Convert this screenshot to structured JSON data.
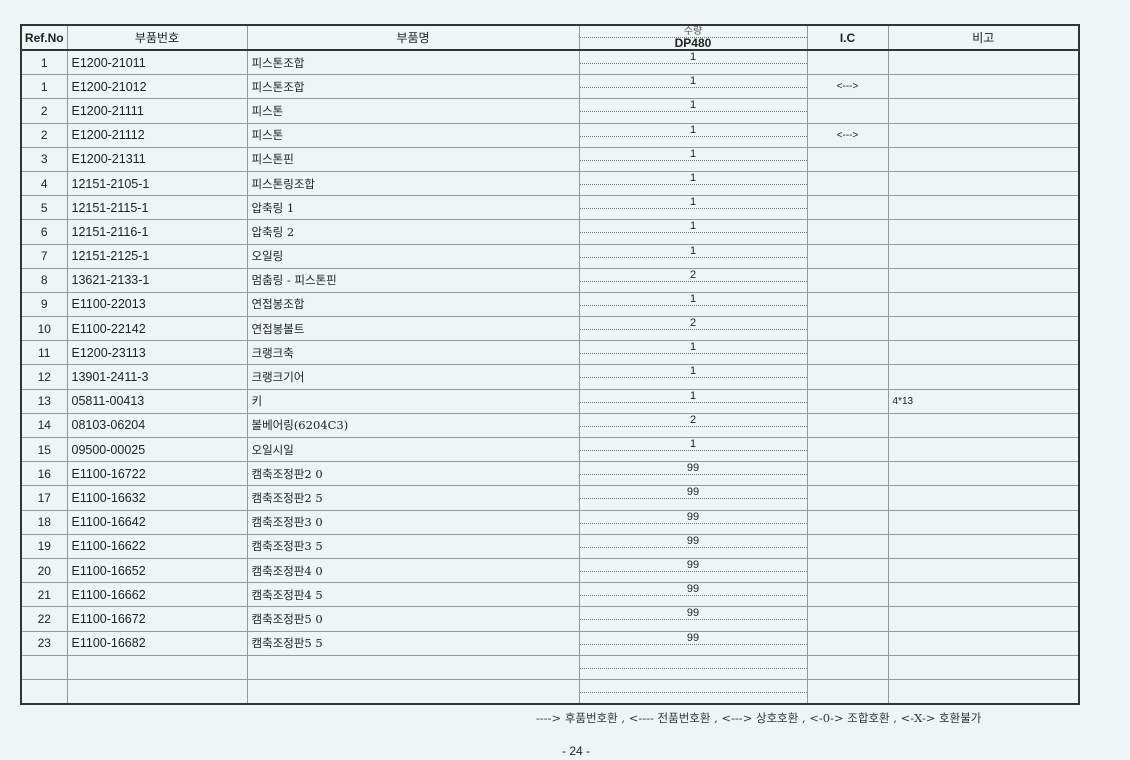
{
  "headers": {
    "ref": "Ref.No",
    "part_no": "부품번호",
    "part_name": "부품명",
    "qty_top": "수량",
    "qty_model": "DP480",
    "ic": "I.C",
    "remarks": "비고"
  },
  "rows": [
    {
      "ref": "1",
      "part_no": "E1200-21011",
      "name": "피스톤조합",
      "qty": "1",
      "ic": "",
      "remarks": ""
    },
    {
      "ref": "1",
      "part_no": "E1200-21012",
      "name": "피스톤조합",
      "qty": "1",
      "ic": "<--->",
      "remarks": ""
    },
    {
      "ref": "2",
      "part_no": "E1200-21111",
      "name": "피스톤",
      "qty": "1",
      "ic": "",
      "remarks": ""
    },
    {
      "ref": "2",
      "part_no": "E1200-21112",
      "name": "피스톤",
      "qty": "1",
      "ic": "<--->",
      "remarks": ""
    },
    {
      "ref": "3",
      "part_no": "E1200-21311",
      "name": "피스톤핀",
      "qty": "1",
      "ic": "",
      "remarks": ""
    },
    {
      "ref": "4",
      "part_no": "12151-2105-1",
      "name": "피스톤링조합",
      "qty": "1",
      "ic": "",
      "remarks": ""
    },
    {
      "ref": "5",
      "part_no": "12151-2115-1",
      "name": "압축링 1",
      "qty": "1",
      "ic": "",
      "remarks": ""
    },
    {
      "ref": "6",
      "part_no": "12151-2116-1",
      "name": "압축링 2",
      "qty": "1",
      "ic": "",
      "remarks": ""
    },
    {
      "ref": "7",
      "part_no": "12151-2125-1",
      "name": "오일링",
      "qty": "1",
      "ic": "",
      "remarks": ""
    },
    {
      "ref": "8",
      "part_no": "13621-2133-1",
      "name": "멈춤링 - 피스톤핀",
      "qty": "2",
      "ic": "",
      "remarks": ""
    },
    {
      "ref": "9",
      "part_no": "E1100-22013",
      "name": "연접봉조합",
      "qty": "1",
      "ic": "",
      "remarks": ""
    },
    {
      "ref": "10",
      "part_no": "E1100-22142",
      "name": "연접봉볼트",
      "qty": "2",
      "ic": "",
      "remarks": ""
    },
    {
      "ref": "11",
      "part_no": "E1200-23113",
      "name": "크랭크축",
      "qty": "1",
      "ic": "",
      "remarks": ""
    },
    {
      "ref": "12",
      "part_no": "13901-2411-3",
      "name": "크랭크기어",
      "qty": "1",
      "ic": "",
      "remarks": ""
    },
    {
      "ref": "13",
      "part_no": "05811-00413",
      "name": "키",
      "qty": "1",
      "ic": "",
      "remarks": "4*13"
    },
    {
      "ref": "14",
      "part_no": "08103-06204",
      "name": "볼베어링(6204C3)",
      "qty": "2",
      "ic": "",
      "remarks": ""
    },
    {
      "ref": "15",
      "part_no": "09500-00025",
      "name": "오일시일",
      "qty": "1",
      "ic": "",
      "remarks": ""
    },
    {
      "ref": "16",
      "part_no": "E1100-16722",
      "name": "캠축조정판2 0",
      "qty": "99",
      "ic": "",
      "remarks": ""
    },
    {
      "ref": "17",
      "part_no": "E1100-16632",
      "name": "캠축조정판2 5",
      "qty": "99",
      "ic": "",
      "remarks": ""
    },
    {
      "ref": "18",
      "part_no": "E1100-16642",
      "name": "캠축조정판3 0",
      "qty": "99",
      "ic": "",
      "remarks": ""
    },
    {
      "ref": "19",
      "part_no": "E1100-16622",
      "name": "캠축조정판3 5",
      "qty": "99",
      "ic": "",
      "remarks": ""
    },
    {
      "ref": "20",
      "part_no": "E1100-16652",
      "name": "캠축조정판4 0",
      "qty": "99",
      "ic": "",
      "remarks": ""
    },
    {
      "ref": "21",
      "part_no": "E1100-16662",
      "name": "캠축조정판4 5",
      "qty": "99",
      "ic": "",
      "remarks": ""
    },
    {
      "ref": "22",
      "part_no": "E1100-16672",
      "name": "캠축조정판5 0",
      "qty": "99",
      "ic": "",
      "remarks": ""
    },
    {
      "ref": "23",
      "part_no": "E1100-16682",
      "name": "캠축조정판5 5",
      "qty": "99",
      "ic": "",
      "remarks": ""
    },
    {
      "ref": "",
      "part_no": "",
      "name": "",
      "qty": "",
      "ic": "",
      "remarks": ""
    },
    {
      "ref": "",
      "part_no": "",
      "name": "",
      "qty": "",
      "ic": "",
      "remarks": ""
    }
  ],
  "legend": "----> 후품번호환 , <---- 전품번호환 , <---> 상호호환 , <-0-> 조합호환 , <-X-> 호환불가",
  "page_number": "- 24 -"
}
